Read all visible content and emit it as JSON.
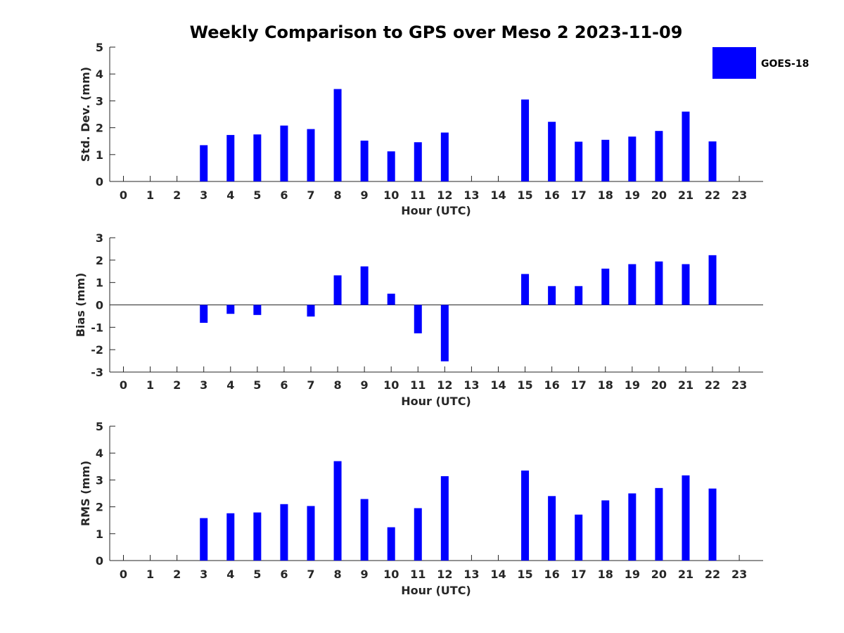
{
  "title": "Weekly Comparison to GPS over Meso 2 2023-11-09",
  "legend": {
    "label": "GOES-18",
    "color": "#0000ff"
  },
  "chart_data": [
    {
      "type": "bar",
      "title": "Weekly Comparison to GPS over Meso 2 2023-11-09",
      "xlabel": "Hour (UTC)",
      "ylabel": "Std. Dev. (mm)",
      "ylim": [
        0,
        5
      ],
      "yticks": [
        "0",
        "1",
        "2",
        "3",
        "4",
        "5"
      ],
      "categories": [
        "0",
        "1",
        "2",
        "3",
        "4",
        "5",
        "6",
        "7",
        "8",
        "9",
        "10",
        "11",
        "12",
        "13",
        "14",
        "15",
        "16",
        "17",
        "18",
        "19",
        "20",
        "21",
        "22",
        "23"
      ],
      "series": [
        {
          "name": "GOES-18",
          "color": "#0000ff",
          "values": [
            null,
            null,
            null,
            1.35,
            1.73,
            1.75,
            2.08,
            1.95,
            3.44,
            1.52,
            1.12,
            1.46,
            1.82,
            null,
            null,
            3.05,
            2.22,
            1.48,
            1.55,
            1.67,
            1.88,
            2.6,
            1.49,
            null
          ]
        }
      ]
    },
    {
      "type": "bar",
      "xlabel": "Hour (UTC)",
      "ylabel": "Bias (mm)",
      "ylim": [
        -3,
        3
      ],
      "yticks": [
        "-3",
        "-2",
        "-1",
        "0",
        "1",
        "2",
        "3"
      ],
      "zero_line": true,
      "categories": [
        "0",
        "1",
        "2",
        "3",
        "4",
        "5",
        "6",
        "7",
        "8",
        "9",
        "10",
        "11",
        "12",
        "13",
        "14",
        "15",
        "16",
        "17",
        "18",
        "19",
        "20",
        "21",
        "22",
        "23"
      ],
      "series": [
        {
          "name": "GOES-18",
          "color": "#0000ff",
          "values": [
            null,
            null,
            null,
            -0.8,
            -0.4,
            -0.45,
            null,
            -0.52,
            1.32,
            1.72,
            0.5,
            -1.27,
            -2.52,
            null,
            null,
            1.38,
            0.84,
            0.84,
            1.62,
            1.82,
            1.94,
            1.82,
            2.22,
            null
          ]
        }
      ]
    },
    {
      "type": "bar",
      "xlabel": "Hour (UTC)",
      "ylabel": "RMS (mm)",
      "ylim": [
        0,
        5
      ],
      "yticks": [
        "0",
        "1",
        "2",
        "3",
        "4",
        "5"
      ],
      "categories": [
        "0",
        "1",
        "2",
        "3",
        "4",
        "5",
        "6",
        "7",
        "8",
        "9",
        "10",
        "11",
        "12",
        "13",
        "14",
        "15",
        "16",
        "17",
        "18",
        "19",
        "20",
        "21",
        "22",
        "23"
      ],
      "series": [
        {
          "name": "GOES-18",
          "color": "#0000ff",
          "values": [
            null,
            null,
            null,
            1.58,
            1.76,
            1.79,
            2.1,
            2.03,
            3.7,
            2.29,
            1.24,
            1.95,
            3.14,
            null,
            null,
            3.35,
            2.4,
            1.71,
            2.24,
            2.5,
            2.7,
            3.17,
            2.68,
            null
          ]
        }
      ]
    }
  ]
}
